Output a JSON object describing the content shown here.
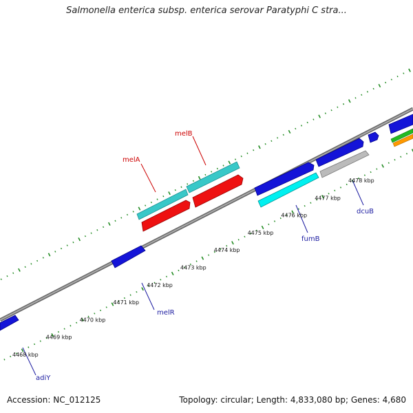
{
  "title": "Salmonella enterica subsp. enterica serovar Paratyphi C stra...",
  "footer": {
    "accession": "Accession: NC_012125",
    "summary": "Topology: circular; Length: 4,833,080 bp; Genes: 4,680"
  },
  "scale_labels": [
    "4468 kbp",
    "4469 kbp",
    "4470 kbp",
    "4471 kbp",
    "4472 kbp",
    "4473 kbp",
    "4474 kbp",
    "4475 kbp",
    "4476 kbp",
    "4477 kbp",
    "4478 kbp"
  ],
  "gene_labels": {
    "melB": "melB",
    "melA": "melA",
    "fumB": "fumB",
    "dcuB": "dcuB",
    "melR": "melR",
    "adiY": "adiY"
  },
  "colors": {
    "backbone": "#888888",
    "tick": "#228b22",
    "cyan_gene": "#38c8c8",
    "red_gene": "#ee1111",
    "blue_gene": "#1414d8",
    "bright_cyan_gene": "#00f0f0",
    "gray_gene": "#bbbbbb",
    "green_gene": "#22bb22",
    "orange_gene": "#ff9900"
  }
}
